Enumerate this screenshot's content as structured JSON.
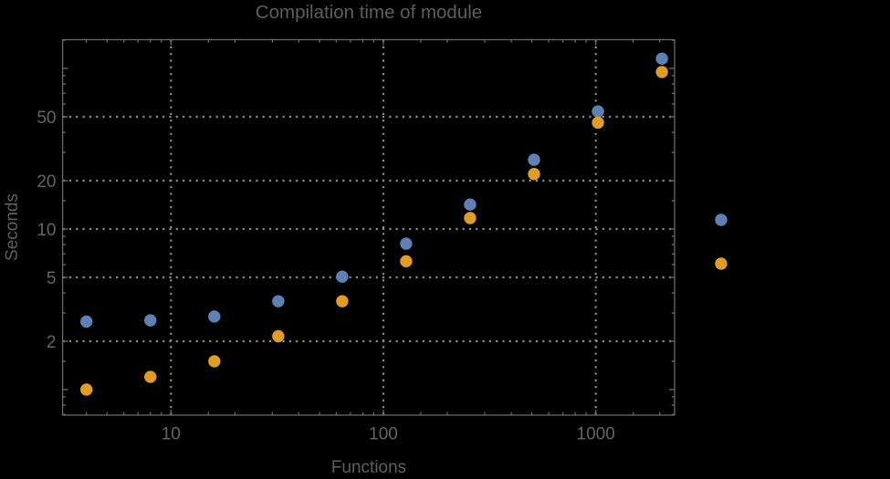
{
  "title": "Compilation time of module",
  "colors": {
    "background": "#000000",
    "frame": "#6a6a6a",
    "gridlines": "#8b8b8b",
    "text": "#5e5e5e",
    "series_blue": "#5e81b5",
    "series_orange": "#e09c24"
  },
  "chart_data": {
    "type": "scatter",
    "title": "Compilation time of module",
    "xlabel": "Functions",
    "ylabel": "Seconds",
    "xscale": "log",
    "yscale": "log",
    "xlim": [
      3.2,
      2344
    ],
    "ylim": [
      0.69,
      152
    ],
    "grid": "dotted",
    "x": [
      4,
      8,
      16,
      32,
      64,
      128,
      256,
      512,
      1024,
      2048
    ],
    "series": [
      {
        "name": "series-blue",
        "color": "#5e81b5",
        "values": [
          2.65,
          2.7,
          2.85,
          3.55,
          5.05,
          8.1,
          14.2,
          27,
          54,
          115
        ]
      },
      {
        "name": "series-orange",
        "color": "#e09c24",
        "values": [
          1.0,
          1.2,
          1.5,
          2.15,
          3.55,
          6.3,
          11.7,
          22,
          46,
          95
        ]
      }
    ],
    "x_ticks": {
      "values": [
        10,
        100,
        1000
      ],
      "labels": [
        "10",
        "100",
        "1000"
      ]
    },
    "y_ticks": {
      "values": [
        2,
        5,
        10,
        20,
        50
      ],
      "labels": [
        "2",
        "5",
        "10",
        "20",
        "50"
      ]
    },
    "legend": {
      "position": "right-outside",
      "entries": [
        {
          "marker_color": "#5e81b5",
          "label": ""
        },
        {
          "marker_color": "#e09c24",
          "label": ""
        }
      ]
    }
  }
}
